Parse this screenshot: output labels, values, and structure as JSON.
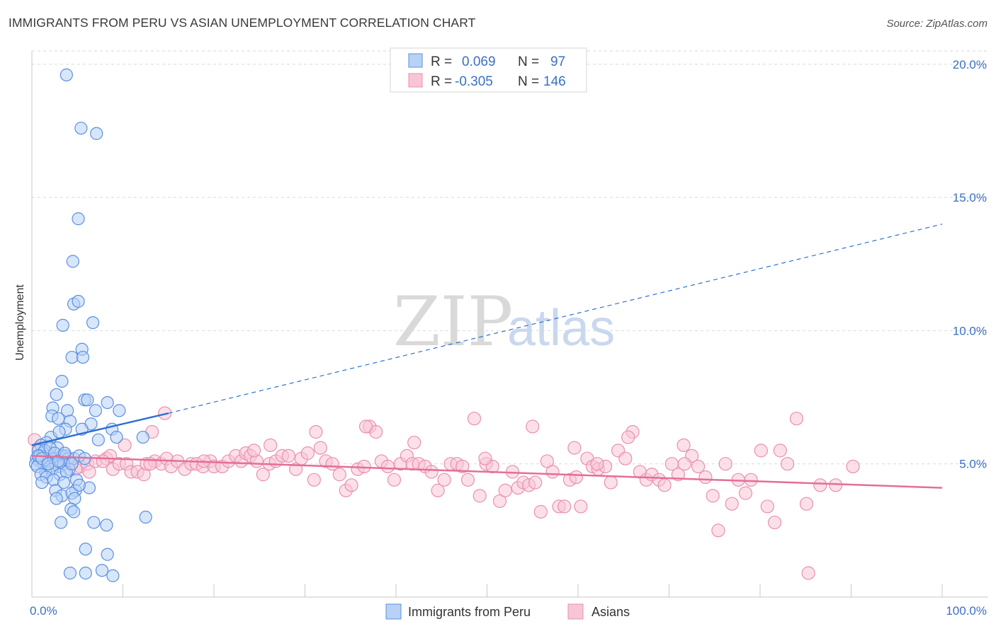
{
  "header": {
    "title": "IMMIGRANTS FROM PERU VS ASIAN UNEMPLOYMENT CORRELATION CHART",
    "source": "Source: ZipAtlas.com"
  },
  "watermark": {
    "zip": "ZIP",
    "atlas": "atlas"
  },
  "colors": {
    "blue_fill": "#b8d2f5",
    "blue_stroke": "#5a8fe0",
    "blue_line": "#2f6fd4",
    "pink_fill": "#f7c6d6",
    "pink_stroke": "#ea8fb0",
    "pink_line": "#e46e99",
    "grid": "#d9d9d9",
    "tick_label": "#3b6fc4"
  },
  "legend": {
    "rows": [
      {
        "r_label": "R =",
        "r_value": "0.069",
        "n_label": "N =",
        "n_value": "97"
      },
      {
        "r_label": "R =",
        "r_value": "-0.305",
        "n_label": "N =",
        "n_value": "146"
      }
    ]
  },
  "chart_data": {
    "type": "scatter",
    "title": "IMMIGRANTS FROM PERU VS ASIAN UNEMPLOYMENT CORRELATION CHART",
    "xlabel": "",
    "ylabel": "Unemployment",
    "xlim": [
      0,
      100
    ],
    "ylim": [
      0,
      20.5
    ],
    "x_tick_labels": [
      "0.0%",
      "100.0%"
    ],
    "y_ticks": [
      5,
      10,
      15,
      20
    ],
    "y_tick_labels": [
      "5.0%",
      "10.0%",
      "15.0%",
      "20.0%"
    ],
    "grid": true,
    "legend_position": "top-center",
    "series": [
      {
        "name": "Immigrants from Peru",
        "color": "#5a8fe0",
        "r": 0.069,
        "n": 97,
        "trend": {
          "x0": 0,
          "y0": 5.7,
          "x1": 15,
          "y1": 6.9,
          "dashed_to_x": 100,
          "dashed_to_y": 14.0
        },
        "points": [
          [
            3.8,
            19.6
          ],
          [
            5.4,
            17.6
          ],
          [
            7.1,
            17.4
          ],
          [
            5.1,
            14.2
          ],
          [
            4.5,
            12.6
          ],
          [
            4.6,
            11.0
          ],
          [
            5.1,
            11.1
          ],
          [
            3.4,
            10.2
          ],
          [
            6.7,
            10.3
          ],
          [
            4.4,
            9.0
          ],
          [
            5.5,
            9.3
          ],
          [
            5.6,
            9.0
          ],
          [
            3.3,
            8.1
          ],
          [
            2.7,
            7.6
          ],
          [
            5.8,
            7.4
          ],
          [
            6.1,
            7.4
          ],
          [
            8.3,
            7.3
          ],
          [
            9.6,
            7.0
          ],
          [
            2.3,
            7.1
          ],
          [
            3.9,
            7.0
          ],
          [
            7.0,
            7.0
          ],
          [
            2.2,
            6.8
          ],
          [
            2.9,
            6.7
          ],
          [
            4.2,
            6.6
          ],
          [
            6.5,
            6.5
          ],
          [
            8.8,
            6.3
          ],
          [
            3.7,
            6.3
          ],
          [
            5.5,
            6.3
          ],
          [
            12.2,
            6.0
          ],
          [
            9.3,
            6.0
          ],
          [
            7.3,
            5.9
          ],
          [
            2.1,
            6.0
          ],
          [
            1.6,
            5.8
          ],
          [
            3.0,
            6.2
          ],
          [
            1.0,
            5.7
          ],
          [
            2.8,
            5.6
          ],
          [
            0.7,
            5.5
          ],
          [
            1.2,
            5.4
          ],
          [
            1.9,
            5.3
          ],
          [
            2.3,
            5.2
          ],
          [
            3.3,
            5.3
          ],
          [
            3.7,
            5.3
          ],
          [
            4.0,
            5.2
          ],
          [
            4.6,
            5.2
          ],
          [
            5.2,
            5.3
          ],
          [
            5.8,
            5.2
          ],
          [
            0.5,
            5.2
          ],
          [
            0.8,
            5.1
          ],
          [
            1.3,
            5.0
          ],
          [
            1.7,
            5.1
          ],
          [
            2.0,
            4.9
          ],
          [
            2.6,
            5.0
          ],
          [
            3.0,
            4.9
          ],
          [
            3.5,
            5.0
          ],
          [
            4.1,
            4.8
          ],
          [
            0.4,
            5.0
          ],
          [
            0.9,
            5.3
          ],
          [
            1.5,
            4.7
          ],
          [
            2.2,
            4.8
          ],
          [
            3.1,
            4.6
          ],
          [
            3.8,
            4.7
          ],
          [
            0.6,
            4.9
          ],
          [
            1.0,
            4.6
          ],
          [
            1.6,
            4.5
          ],
          [
            2.4,
            4.4
          ],
          [
            3.5,
            4.3
          ],
          [
            4.9,
            4.4
          ],
          [
            1.1,
            4.3
          ],
          [
            2.6,
            4.0
          ],
          [
            4.8,
            4.0
          ],
          [
            3.3,
            3.8
          ],
          [
            4.4,
            3.9
          ],
          [
            6.3,
            4.1
          ],
          [
            5.2,
            4.2
          ],
          [
            4.7,
            3.7
          ],
          [
            2.7,
            3.7
          ],
          [
            4.3,
            3.3
          ],
          [
            4.6,
            3.2
          ],
          [
            12.5,
            3.0
          ],
          [
            3.2,
            2.8
          ],
          [
            6.8,
            2.8
          ],
          [
            8.2,
            2.7
          ],
          [
            5.9,
            1.8
          ],
          [
            8.3,
            1.6
          ],
          [
            4.2,
            0.9
          ],
          [
            5.9,
            0.9
          ],
          [
            7.7,
            1.0
          ],
          [
            8.9,
            0.8
          ],
          [
            1.4,
            5.5
          ],
          [
            2.0,
            5.6
          ],
          [
            2.5,
            5.4
          ],
          [
            0.7,
            5.3
          ],
          [
            1.1,
            5.2
          ],
          [
            1.8,
            5.0
          ],
          [
            2.9,
            5.1
          ],
          [
            3.6,
            5.4
          ],
          [
            4.4,
            5.0
          ]
        ]
      },
      {
        "name": "Asians",
        "color": "#ea8fb0",
        "r": -0.305,
        "n": 146,
        "trend": {
          "x0": 0,
          "y0": 5.3,
          "x1": 100,
          "y1": 4.1
        },
        "points": [
          [
            0.3,
            5.9
          ],
          [
            0.8,
            5.6
          ],
          [
            1.2,
            5.3
          ],
          [
            1.8,
            5.4
          ],
          [
            2.3,
            5.1
          ],
          [
            3.4,
            5.2
          ],
          [
            4.3,
            5.0
          ],
          [
            5.3,
            4.9
          ],
          [
            6.1,
            5.0
          ],
          [
            7.0,
            5.1
          ],
          [
            8.2,
            5.2
          ],
          [
            8.9,
            4.8
          ],
          [
            9.6,
            5.0
          ],
          [
            10.4,
            5.0
          ],
          [
            10.9,
            4.7
          ],
          [
            11.6,
            4.7
          ],
          [
            12.3,
            4.6
          ],
          [
            12.6,
            5.0
          ],
          [
            13.5,
            5.1
          ],
          [
            14.2,
            5.0
          ],
          [
            14.8,
            5.2
          ],
          [
            15.3,
            4.9
          ],
          [
            16.0,
            5.1
          ],
          [
            16.8,
            4.8
          ],
          [
            17.5,
            5.0
          ],
          [
            18.1,
            5.0
          ],
          [
            18.8,
            4.9
          ],
          [
            19.6,
            5.1
          ],
          [
            20.0,
            4.9
          ],
          [
            20.9,
            4.9
          ],
          [
            21.6,
            5.1
          ],
          [
            22.4,
            5.3
          ],
          [
            23.0,
            5.1
          ],
          [
            23.5,
            5.4
          ],
          [
            24.0,
            5.3
          ],
          [
            24.7,
            5.1
          ],
          [
            25.4,
            4.6
          ],
          [
            26.1,
            5.0
          ],
          [
            26.8,
            5.1
          ],
          [
            27.5,
            5.3
          ],
          [
            28.2,
            5.3
          ],
          [
            29.0,
            4.8
          ],
          [
            29.6,
            5.2
          ],
          [
            30.3,
            5.4
          ],
          [
            31.0,
            4.4
          ],
          [
            31.7,
            5.6
          ],
          [
            32.3,
            5.1
          ],
          [
            33.0,
            5.0
          ],
          [
            33.8,
            4.6
          ],
          [
            34.5,
            4.0
          ],
          [
            35.1,
            4.2
          ],
          [
            35.8,
            4.8
          ],
          [
            36.5,
            4.9
          ],
          [
            37.1,
            6.4
          ],
          [
            37.8,
            6.2
          ],
          [
            38.4,
            5.1
          ],
          [
            39.1,
            4.9
          ],
          [
            39.8,
            4.4
          ],
          [
            40.5,
            5.0
          ],
          [
            41.2,
            5.3
          ],
          [
            41.8,
            5.0
          ],
          [
            42.5,
            5.0
          ],
          [
            43.2,
            4.9
          ],
          [
            43.9,
            4.7
          ],
          [
            44.6,
            4.0
          ],
          [
            45.3,
            4.4
          ],
          [
            46.0,
            5.0
          ],
          [
            46.7,
            5.0
          ],
          [
            47.3,
            4.9
          ],
          [
            47.9,
            4.4
          ],
          [
            48.6,
            6.7
          ],
          [
            49.2,
            3.8
          ],
          [
            49.9,
            5.0
          ],
          [
            50.6,
            4.9
          ],
          [
            51.4,
            3.6
          ],
          [
            52.0,
            4.0
          ],
          [
            52.8,
            4.7
          ],
          [
            53.4,
            4.1
          ],
          [
            54.0,
            4.3
          ],
          [
            54.6,
            4.2
          ],
          [
            55.3,
            4.3
          ],
          [
            55.9,
            3.2
          ],
          [
            56.6,
            5.1
          ],
          [
            57.2,
            4.7
          ],
          [
            57.9,
            3.4
          ],
          [
            58.5,
            3.4
          ],
          [
            59.1,
            4.4
          ],
          [
            59.8,
            4.5
          ],
          [
            60.3,
            3.4
          ],
          [
            61.0,
            5.2
          ],
          [
            61.6,
            4.9
          ],
          [
            62.2,
            4.8
          ],
          [
            63.0,
            4.9
          ],
          [
            63.6,
            4.3
          ],
          [
            64.4,
            5.5
          ],
          [
            65.2,
            5.2
          ],
          [
            66.0,
            6.2
          ],
          [
            66.8,
            4.7
          ],
          [
            67.5,
            4.4
          ],
          [
            68.1,
            4.6
          ],
          [
            68.9,
            4.4
          ],
          [
            69.5,
            4.2
          ],
          [
            70.3,
            5.0
          ],
          [
            71.0,
            4.6
          ],
          [
            71.6,
            5.7
          ],
          [
            72.5,
            5.3
          ],
          [
            73.2,
            4.9
          ],
          [
            74.0,
            4.5
          ],
          [
            74.8,
            3.8
          ],
          [
            75.4,
            2.5
          ],
          [
            76.2,
            5.0
          ],
          [
            76.9,
            3.5
          ],
          [
            77.6,
            4.4
          ],
          [
            78.4,
            3.9
          ],
          [
            79.0,
            4.4
          ],
          [
            80.1,
            5.5
          ],
          [
            80.8,
            3.4
          ],
          [
            81.6,
            2.8
          ],
          [
            82.2,
            5.5
          ],
          [
            83.0,
            5.0
          ],
          [
            84.0,
            6.7
          ],
          [
            85.1,
            3.5
          ],
          [
            86.6,
            4.2
          ],
          [
            88.3,
            4.2
          ],
          [
            90.2,
            4.9
          ],
          [
            85.3,
            0.9
          ],
          [
            14.6,
            6.9
          ],
          [
            13.2,
            6.2
          ],
          [
            10.2,
            5.7
          ],
          [
            8.6,
            5.3
          ],
          [
            26.2,
            5.7
          ],
          [
            31.2,
            6.2
          ],
          [
            36.7,
            6.4
          ],
          [
            42.0,
            5.8
          ],
          [
            49.8,
            5.2
          ],
          [
            55.0,
            6.4
          ],
          [
            59.6,
            5.6
          ],
          [
            62.1,
            5.0
          ],
          [
            65.5,
            6.0
          ],
          [
            71.7,
            5.0
          ],
          [
            4.8,
            4.8
          ],
          [
            6.3,
            4.7
          ],
          [
            7.8,
            5.1
          ],
          [
            13.0,
            5.0
          ],
          [
            18.9,
            5.1
          ],
          [
            24.4,
            5.5
          ]
        ]
      }
    ]
  }
}
